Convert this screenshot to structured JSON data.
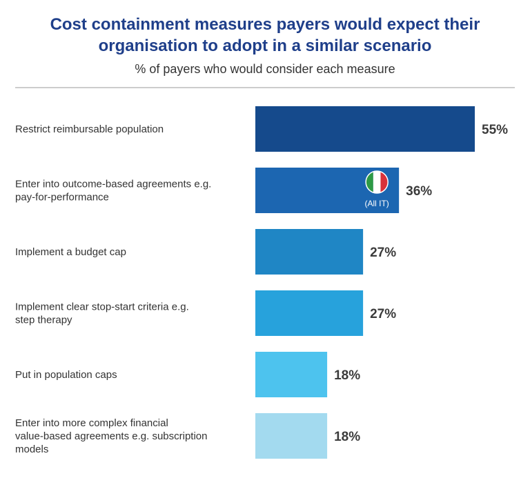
{
  "chart_data": {
    "type": "bar",
    "orientation": "horizontal",
    "title_lines": [
      "Cost containment measures payers would expect their",
      "organisation to adopt in a similar scenario"
    ],
    "subtitle": "% of payers who would consider each measure",
    "categories": [
      [
        "Restrict reimbursable population"
      ],
      [
        "Enter into outcome-based agreements e.g.",
        "pay-for-performance"
      ],
      [
        "Implement a budget cap"
      ],
      [
        "Implement clear stop-start criteria e.g.",
        "step therapy"
      ],
      [
        "Put in population caps"
      ],
      [
        "Enter into more complex financial",
        "value-based agreements e.g. subscription",
        "models"
      ]
    ],
    "values": [
      55,
      36,
      27,
      27,
      18,
      18
    ],
    "value_labels": [
      "55%",
      "36%",
      "27%",
      "27%",
      "18%",
      "18%"
    ],
    "value_unit": "%",
    "xlim": [
      0,
      55
    ],
    "grid": false,
    "legend": "none",
    "bar_colors": [
      "#154a8c",
      "#1c66b1",
      "#1f86c5",
      "#27a2dc",
      "#4dc3ee",
      "#a3daef"
    ],
    "annotations": [
      {
        "category_index": 1,
        "icon": "italy-flag-icon",
        "text": "(All IT)"
      }
    ],
    "colors": {
      "title": "#1f3f8a",
      "subtitle": "#333333",
      "label_text": "#333333",
      "value_text": "#3b3b3b",
      "divider": "#9a9a9a",
      "annotation_text": "#ffffff",
      "flag_green": "#2e9a45",
      "flag_white": "#ffffff",
      "flag_red": "#d9323a"
    }
  }
}
